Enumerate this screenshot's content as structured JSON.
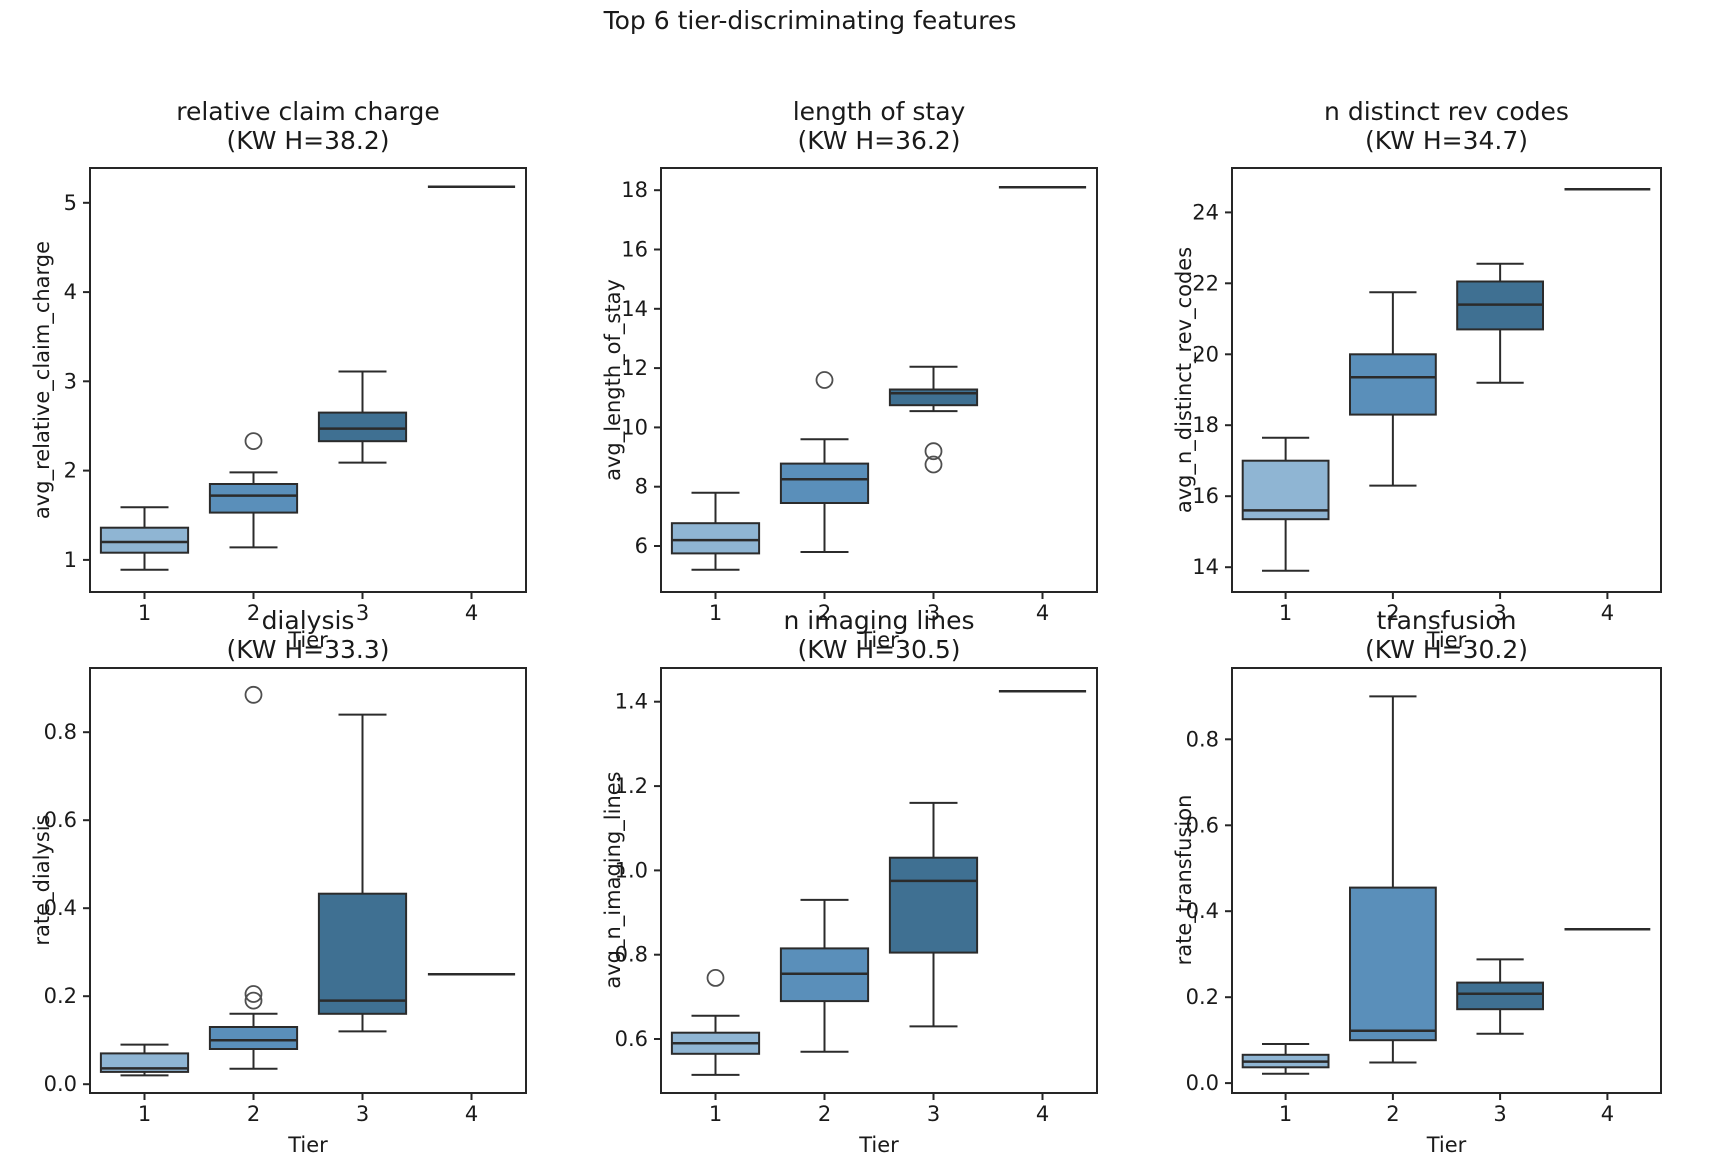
{
  "figure_title": "Top 6 tier-discriminating features",
  "x_axis_label": "Tier",
  "x_tick_labels": [
    "1",
    "2",
    "3",
    "4"
  ],
  "colors": {
    "tiers": [
      "#8fb5d3",
      "#5a8fba",
      "#3f7092",
      "#3f7092"
    ],
    "box_edge": "#2b2b2b",
    "outlier_edge": "#4f4f4f",
    "text": "#1a1a1a"
  },
  "chart_data": [
    {
      "type": "box",
      "title": "relative claim charge",
      "subtitle": "(KW H=38.2)",
      "kw_h": 38.2,
      "ylabel": "avg_relative_claim_charge",
      "xlabel": "Tier",
      "categories": [
        "1",
        "2",
        "3",
        "4"
      ],
      "ylim": [
        0.64,
        5.39
      ],
      "yticks": [
        {
          "v": 1,
          "label": "1"
        },
        {
          "v": 2,
          "label": "2"
        },
        {
          "v": 3,
          "label": "3"
        },
        {
          "v": 4,
          "label": "4"
        },
        {
          "v": 5,
          "label": "5"
        }
      ],
      "boxes": [
        {
          "tier": "1",
          "whislo": 0.89,
          "q1": 1.08,
          "med": 1.2,
          "q3": 1.36,
          "whishi": 1.59,
          "outliers": []
        },
        {
          "tier": "2",
          "whislo": 1.14,
          "q1": 1.53,
          "med": 1.72,
          "q3": 1.85,
          "whishi": 1.98,
          "outliers": [
            2.33
          ]
        },
        {
          "tier": "3",
          "whislo": 2.09,
          "q1": 2.33,
          "med": 2.47,
          "q3": 2.65,
          "whishi": 3.11,
          "outliers": []
        },
        {
          "tier": "4",
          "single": 5.18
        }
      ]
    },
    {
      "type": "box",
      "title": "length of stay",
      "subtitle": "(KW H=36.2)",
      "kw_h": 36.2,
      "ylabel": "avg_length_of_stay",
      "xlabel": "Tier",
      "categories": [
        "1",
        "2",
        "3",
        "4"
      ],
      "ylim": [
        4.45,
        18.75
      ],
      "yticks": [
        {
          "v": 6,
          "label": "6"
        },
        {
          "v": 8,
          "label": "8"
        },
        {
          "v": 10,
          "label": "10"
        },
        {
          "v": 12,
          "label": "12"
        },
        {
          "v": 14,
          "label": "14"
        },
        {
          "v": 16,
          "label": "16"
        },
        {
          "v": 18,
          "label": "18"
        }
      ],
      "boxes": [
        {
          "tier": "1",
          "whislo": 5.2,
          "q1": 5.75,
          "med": 6.2,
          "q3": 6.77,
          "whishi": 7.8,
          "outliers": []
        },
        {
          "tier": "2",
          "whislo": 5.8,
          "q1": 7.45,
          "med": 8.25,
          "q3": 8.78,
          "whishi": 9.6,
          "outliers": [
            11.6
          ]
        },
        {
          "tier": "3",
          "whislo": 10.55,
          "q1": 10.75,
          "med": 11.15,
          "q3": 11.28,
          "whishi": 12.05,
          "outliers": [
            9.2,
            8.75
          ]
        },
        {
          "tier": "4",
          "single": 18.1
        }
      ]
    },
    {
      "type": "box",
      "title": "n distinct rev codes",
      "subtitle": "(KW H=34.7)",
      "kw_h": 34.7,
      "ylabel": "avg_n_distinct_rev_codes",
      "xlabel": "Tier",
      "categories": [
        "1",
        "2",
        "3",
        "4"
      ],
      "ylim": [
        13.3,
        25.25
      ],
      "yticks": [
        {
          "v": 14,
          "label": "14"
        },
        {
          "v": 16,
          "label": "16"
        },
        {
          "v": 18,
          "label": "18"
        },
        {
          "v": 20,
          "label": "20"
        },
        {
          "v": 22,
          "label": "22"
        },
        {
          "v": 24,
          "label": "24"
        }
      ],
      "boxes": [
        {
          "tier": "1",
          "whislo": 13.9,
          "q1": 15.35,
          "med": 15.6,
          "q3": 17.0,
          "whishi": 17.65,
          "outliers": []
        },
        {
          "tier": "2",
          "whislo": 16.3,
          "q1": 18.3,
          "med": 19.35,
          "q3": 20.0,
          "whishi": 21.75,
          "outliers": []
        },
        {
          "tier": "3",
          "whislo": 19.2,
          "q1": 20.7,
          "med": 21.4,
          "q3": 22.05,
          "whishi": 22.55,
          "outliers": []
        },
        {
          "tier": "4",
          "single": 24.65
        }
      ]
    },
    {
      "type": "box",
      "title": "dialysis",
      "subtitle": "(KW H=33.3)",
      "kw_h": 33.3,
      "ylabel": "rate_dialysis",
      "xlabel": "Tier",
      "categories": [
        "1",
        "2",
        "3",
        "4"
      ],
      "ylim": [
        -0.02,
        0.946
      ],
      "yticks": [
        {
          "v": 0.0,
          "label": "0.0"
        },
        {
          "v": 0.2,
          "label": "0.2"
        },
        {
          "v": 0.4,
          "label": "0.4"
        },
        {
          "v": 0.6,
          "label": "0.6"
        },
        {
          "v": 0.8,
          "label": "0.8"
        }
      ],
      "boxes": [
        {
          "tier": "1",
          "whislo": 0.02,
          "q1": 0.028,
          "med": 0.036,
          "q3": 0.07,
          "whishi": 0.09,
          "outliers": []
        },
        {
          "tier": "2",
          "whislo": 0.035,
          "q1": 0.08,
          "med": 0.1,
          "q3": 0.13,
          "whishi": 0.16,
          "outliers": [
            0.19,
            0.205,
            0.885
          ]
        },
        {
          "tier": "3",
          "whislo": 0.12,
          "q1": 0.16,
          "med": 0.19,
          "q3": 0.433,
          "whishi": 0.84,
          "outliers": []
        },
        {
          "tier": "4",
          "single": 0.25
        }
      ]
    },
    {
      "type": "box",
      "title": "n imaging lines",
      "subtitle": "(KW H=30.5)",
      "kw_h": 30.5,
      "ylabel": "avg_n_imaging_lines",
      "xlabel": "Tier",
      "categories": [
        "1",
        "2",
        "3",
        "4"
      ],
      "ylim": [
        0.472,
        1.48
      ],
      "yticks": [
        {
          "v": 0.6,
          "label": "0.6"
        },
        {
          "v": 0.8,
          "label": "0.8"
        },
        {
          "v": 1.0,
          "label": "1.0"
        },
        {
          "v": 1.2,
          "label": "1.2"
        },
        {
          "v": 1.4,
          "label": "1.4"
        }
      ],
      "boxes": [
        {
          "tier": "1",
          "whislo": 0.515,
          "q1": 0.565,
          "med": 0.59,
          "q3": 0.615,
          "whishi": 0.655,
          "outliers": [
            0.745
          ]
        },
        {
          "tier": "2",
          "whislo": 0.57,
          "q1": 0.69,
          "med": 0.755,
          "q3": 0.815,
          "whishi": 0.93,
          "outliers": []
        },
        {
          "tier": "3",
          "whislo": 0.63,
          "q1": 0.805,
          "med": 0.975,
          "q3": 1.03,
          "whishi": 1.16,
          "outliers": []
        },
        {
          "tier": "4",
          "single": 1.425
        }
      ]
    },
    {
      "type": "box",
      "title": "transfusion",
      "subtitle": "(KW H=30.2)",
      "kw_h": 30.2,
      "ylabel": "rate_transfusion",
      "xlabel": "Tier",
      "categories": [
        "1",
        "2",
        "3",
        "4"
      ],
      "ylim": [
        -0.023,
        0.966
      ],
      "yticks": [
        {
          "v": 0.0,
          "label": "0.0"
        },
        {
          "v": 0.2,
          "label": "0.2"
        },
        {
          "v": 0.4,
          "label": "0.4"
        },
        {
          "v": 0.6,
          "label": "0.6"
        },
        {
          "v": 0.8,
          "label": "0.8"
        }
      ],
      "boxes": [
        {
          "tier": "1",
          "whislo": 0.022,
          "q1": 0.037,
          "med": 0.05,
          "q3": 0.066,
          "whishi": 0.091,
          "outliers": []
        },
        {
          "tier": "2",
          "whislo": 0.048,
          "q1": 0.1,
          "med": 0.122,
          "q3": 0.455,
          "whishi": 0.9,
          "outliers": []
        },
        {
          "tier": "3",
          "whislo": 0.115,
          "q1": 0.172,
          "med": 0.208,
          "q3": 0.234,
          "whishi": 0.288,
          "outliers": []
        },
        {
          "tier": "4",
          "single": 0.358
        }
      ]
    }
  ]
}
